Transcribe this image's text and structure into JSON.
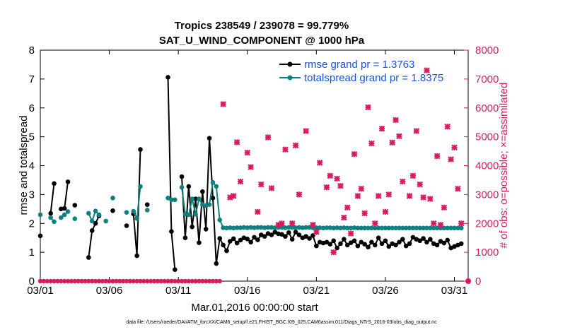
{
  "chart_data": {
    "type": "line",
    "title_line1": "Tropics 238549 / 239078 = 99.779%",
    "title_line2": "SAT_U_WIND_COMPONENT @ 1000 hPa",
    "xlabel": "Mar.01,2016 00:00:00 start",
    "ylabel_left": "rmse and totalspread",
    "ylabel_right": "# of obs: o=possible; ×=assimilated",
    "footer": "data file: /Users/raeder/DAI/ATM_forcXX/CAM6_setup/f.e21.FHIST_BGC.f09_025.CAM6assim.011/Diags_NTrS_2016-03/obs_diag_output.nc",
    "x_tick_labels": [
      "03/01",
      "03/06",
      "03/11",
      "03/16",
      "03/21",
      "03/26",
      "03/31"
    ],
    "x_tick_days": [
      1,
      6,
      11,
      16,
      21,
      26,
      31
    ],
    "xlim_days": [
      1,
      32
    ],
    "ylim_left": [
      0,
      8
    ],
    "y_left_ticks": [
      "0",
      "1",
      "2",
      "3",
      "4",
      "5",
      "6",
      "7",
      "8"
    ],
    "ylim_right": [
      0,
      8000
    ],
    "y_right_ticks": [
      "0",
      "1000",
      "2000",
      "3000",
      "4000",
      "5000",
      "6000",
      "7000",
      "8000"
    ],
    "legend_location": "top-right",
    "colors": {
      "rmse": "#000000",
      "spread": "#0f8080",
      "obs": "#d81b60",
      "legend_text": "#1a53e0"
    },
    "series": [
      {
        "name": "rmse grand pr = 1.3763",
        "key": "rmse",
        "points": [
          [
            1.0,
            1.57
          ],
          [
            1.75,
            2.35
          ],
          [
            2.0,
            3.38
          ],
          [
            2.5,
            2.5
          ],
          [
            2.75,
            2.52
          ],
          [
            3.0,
            3.44
          ],
          [
            3.5,
            2.63
          ],
          [
            4.5,
            0.82
          ],
          [
            4.75,
            1.75
          ],
          [
            5.0,
            2.0
          ],
          [
            5.25,
            2.26
          ],
          [
            6.25,
            2.44
          ],
          [
            7.25,
            1.92
          ],
          [
            7.75,
            2.33
          ],
          [
            8.0,
            0.88
          ],
          [
            8.25,
            4.56
          ],
          [
            8.75,
            2.65
          ],
          [
            10.25,
            7.06
          ],
          [
            10.5,
            1.72
          ],
          [
            10.75,
            0.4
          ],
          [
            11.25,
            3.62
          ],
          [
            11.5,
            1.5
          ],
          [
            11.75,
            3.28
          ],
          [
            12.0,
            1.88
          ],
          [
            12.25,
            2.85
          ],
          [
            12.5,
            1.33
          ],
          [
            12.75,
            3.1
          ],
          [
            13.0,
            1.8
          ],
          [
            13.25,
            4.95
          ],
          [
            13.5,
            2.88
          ],
          [
            13.75,
            0.61
          ],
          [
            14.0,
            1.48
          ],
          [
            14.25,
            1.25
          ],
          [
            14.5,
            1.05
          ],
          [
            14.75,
            1.38
          ],
          [
            15.0,
            1.47
          ],
          [
            15.25,
            1.32
          ],
          [
            15.5,
            1.42
          ],
          [
            15.75,
            1.5
          ],
          [
            16.0,
            1.46
          ],
          [
            16.25,
            1.35
          ],
          [
            16.5,
            1.52
          ],
          [
            16.75,
            1.43
          ],
          [
            17.0,
            1.6
          ],
          [
            17.25,
            1.55
          ],
          [
            17.5,
            1.65
          ],
          [
            17.75,
            1.6
          ],
          [
            18.0,
            1.7
          ],
          [
            18.25,
            1.64
          ],
          [
            18.5,
            1.62
          ],
          [
            18.75,
            1.55
          ],
          [
            19.0,
            1.68
          ],
          [
            19.25,
            1.45
          ],
          [
            19.5,
            1.7
          ],
          [
            19.75,
            1.6
          ],
          [
            20.0,
            1.5
          ],
          [
            20.25,
            1.55
          ],
          [
            20.5,
            1.48
          ],
          [
            20.75,
            1.58
          ],
          [
            21.0,
            1.22
          ],
          [
            21.25,
            1.35
          ],
          [
            21.5,
            1.32
          ],
          [
            21.75,
            1.35
          ],
          [
            22.0,
            1.28
          ],
          [
            22.25,
            1.4
          ],
          [
            22.5,
            1.15
          ],
          [
            22.75,
            1.3
          ],
          [
            23.0,
            1.45
          ],
          [
            23.25,
            1.25
          ],
          [
            23.5,
            1.33
          ],
          [
            23.75,
            1.4
          ],
          [
            24.0,
            1.22
          ],
          [
            24.25,
            1.35
          ],
          [
            24.5,
            1.28
          ],
          [
            24.75,
            1.18
          ],
          [
            25.0,
            1.35
          ],
          [
            25.25,
            1.25
          ],
          [
            25.5,
            1.5
          ],
          [
            25.75,
            1.3
          ],
          [
            26.0,
            1.4
          ],
          [
            26.25,
            1.2
          ],
          [
            26.5,
            1.3
          ],
          [
            26.75,
            1.25
          ],
          [
            27.0,
            1.35
          ],
          [
            27.25,
            1.45
          ],
          [
            27.5,
            1.22
          ],
          [
            27.75,
            1.3
          ],
          [
            28.0,
            1.52
          ],
          [
            28.25,
            1.45
          ],
          [
            28.5,
            1.4
          ],
          [
            28.75,
            1.48
          ],
          [
            29.0,
            1.35
          ],
          [
            29.25,
            1.45
          ],
          [
            29.5,
            1.3
          ],
          [
            29.75,
            1.25
          ],
          [
            30.0,
            1.38
          ],
          [
            30.25,
            1.32
          ],
          [
            30.5,
            1.42
          ],
          [
            30.75,
            1.15
          ],
          [
            31.0,
            1.2
          ],
          [
            31.25,
            1.25
          ],
          [
            31.5,
            1.3
          ]
        ]
      },
      {
        "name": "totalspread grand pr = 1.8375",
        "key": "spread",
        "points": [
          [
            1.0,
            2.3
          ],
          [
            1.75,
            2.2
          ],
          [
            2.0,
            2.06
          ],
          [
            2.5,
            2.2
          ],
          [
            2.75,
            2.3
          ],
          [
            3.0,
            2.41
          ],
          [
            3.5,
            2.16
          ],
          [
            4.5,
            2.35
          ],
          [
            4.75,
            2.08
          ],
          [
            5.0,
            2.43
          ],
          [
            5.25,
            2.3
          ],
          [
            5.75,
            2.08
          ],
          [
            6.25,
            2.88
          ],
          [
            7.25,
            2.38
          ],
          [
            7.75,
            2.42
          ],
          [
            8.0,
            2.17
          ],
          [
            8.25,
            3.28
          ],
          [
            8.75,
            2.46
          ],
          [
            10.25,
            2.88
          ],
          [
            10.5,
            2.82
          ],
          [
            10.75,
            2.82
          ],
          [
            11.25,
            3.25
          ],
          [
            11.5,
            2.32
          ],
          [
            11.75,
            2.3
          ],
          [
            12.0,
            2.85
          ],
          [
            12.25,
            2.32
          ],
          [
            12.5,
            2.85
          ],
          [
            12.75,
            2.65
          ],
          [
            13.0,
            2.62
          ],
          [
            13.25,
            2.65
          ],
          [
            13.5,
            3.42
          ],
          [
            13.75,
            3.28
          ],
          [
            14.0,
            2.12
          ],
          [
            14.25,
            1.85
          ],
          [
            14.5,
            1.84
          ],
          [
            14.75,
            1.85
          ],
          [
            15.0,
            1.84
          ],
          [
            15.25,
            1.85
          ],
          [
            15.5,
            1.85
          ],
          [
            15.75,
            1.86
          ],
          [
            16.0,
            1.85
          ],
          [
            16.25,
            1.86
          ],
          [
            16.5,
            1.85
          ],
          [
            16.75,
            1.86
          ],
          [
            17.0,
            1.86
          ],
          [
            17.25,
            1.85
          ],
          [
            17.5,
            1.86
          ],
          [
            17.75,
            1.86
          ],
          [
            18.0,
            1.85
          ],
          [
            18.25,
            1.86
          ],
          [
            18.5,
            1.86
          ],
          [
            18.75,
            1.85
          ],
          [
            19.0,
            1.86
          ],
          [
            19.25,
            1.86
          ],
          [
            19.5,
            1.85
          ],
          [
            19.75,
            1.86
          ],
          [
            20.0,
            1.85
          ],
          [
            20.25,
            1.86
          ],
          [
            20.5,
            1.86
          ],
          [
            20.75,
            1.85
          ],
          [
            21.0,
            1.85
          ],
          [
            21.25,
            1.85
          ],
          [
            21.5,
            1.84
          ],
          [
            21.75,
            1.85
          ],
          [
            22.0,
            1.85
          ],
          [
            22.25,
            1.84
          ],
          [
            22.5,
            1.85
          ],
          [
            22.75,
            1.84
          ],
          [
            23.0,
            1.85
          ],
          [
            23.25,
            1.84
          ],
          [
            23.5,
            1.84
          ],
          [
            23.75,
            1.85
          ],
          [
            24.0,
            1.84
          ],
          [
            24.25,
            1.84
          ],
          [
            24.5,
            1.84
          ],
          [
            24.75,
            1.84
          ],
          [
            25.0,
            1.84
          ],
          [
            25.25,
            1.84
          ],
          [
            25.5,
            1.84
          ],
          [
            25.75,
            1.84
          ],
          [
            26.0,
            1.84
          ],
          [
            26.25,
            1.84
          ],
          [
            26.5,
            1.84
          ],
          [
            26.75,
            1.84
          ],
          [
            27.0,
            1.84
          ],
          [
            27.25,
            1.84
          ],
          [
            27.5,
            1.84
          ],
          [
            27.75,
            1.84
          ],
          [
            28.0,
            1.84
          ],
          [
            28.25,
            1.84
          ],
          [
            28.5,
            1.84
          ],
          [
            28.75,
            1.84
          ],
          [
            29.0,
            1.84
          ],
          [
            29.25,
            1.84
          ],
          [
            29.5,
            1.84
          ],
          [
            29.75,
            1.84
          ],
          [
            30.0,
            1.84
          ],
          [
            30.25,
            1.84
          ],
          [
            30.5,
            1.84
          ],
          [
            30.75,
            1.84
          ],
          [
            31.0,
            1.84
          ],
          [
            31.25,
            1.84
          ],
          [
            31.5,
            1.84
          ]
        ]
      }
    ],
    "assimilated_obs": [
      [
        14.25,
        6130
      ],
      [
        14.75,
        2900
      ],
      [
        15.0,
        2950
      ],
      [
        15.25,
        4810
      ],
      [
        15.5,
        3450
      ],
      [
        16.0,
        4450
      ],
      [
        16.25,
        3950
      ],
      [
        16.75,
        2400
      ],
      [
        17.0,
        3350
      ],
      [
        17.5,
        4980
      ],
      [
        17.75,
        3220
      ],
      [
        18.25,
        1950
      ],
      [
        18.5,
        2000
      ],
      [
        18.75,
        4560
      ],
      [
        19.25,
        2000
      ],
      [
        19.5,
        4700
      ],
      [
        19.75,
        3000
      ],
      [
        20.25,
        5200
      ],
      [
        20.75,
        1950
      ],
      [
        21.0,
        1700
      ],
      [
        21.25,
        4100
      ],
      [
        21.75,
        3250
      ],
      [
        22.0,
        3650
      ],
      [
        22.25,
        1000
      ],
      [
        22.5,
        3550
      ],
      [
        22.75,
        3300
      ],
      [
        23.0,
        2200
      ],
      [
        23.25,
        2550
      ],
      [
        23.5,
        1650
      ],
      [
        23.75,
        4400
      ],
      [
        24.0,
        2950
      ],
      [
        24.25,
        3200
      ],
      [
        24.5,
        2350
      ],
      [
        24.75,
        6020
      ],
      [
        25.0,
        4770
      ],
      [
        25.25,
        2000
      ],
      [
        25.5,
        2950
      ],
      [
        25.75,
        5280
      ],
      [
        26.0,
        2400
      ],
      [
        26.25,
        3000
      ],
      [
        26.5,
        4800
      ],
      [
        26.75,
        5580
      ],
      [
        27.0,
        5020
      ],
      [
        27.25,
        3450
      ],
      [
        27.75,
        2950
      ],
      [
        28.0,
        3650
      ],
      [
        28.25,
        5200
      ],
      [
        28.5,
        3350
      ],
      [
        28.75,
        2900
      ],
      [
        29.0,
        7300
      ],
      [
        29.25,
        2850
      ],
      [
        29.5,
        2000
      ],
      [
        29.75,
        4330
      ],
      [
        30.0,
        1950
      ],
      [
        30.25,
        2550
      ],
      [
        30.5,
        5350
      ],
      [
        30.75,
        4220
      ],
      [
        31.0,
        4630
      ],
      [
        31.25,
        3200
      ],
      [
        31.5,
        2000
      ]
    ],
    "possible_obs_count_note": "possible observations near zero shown as markers along the x axis"
  }
}
